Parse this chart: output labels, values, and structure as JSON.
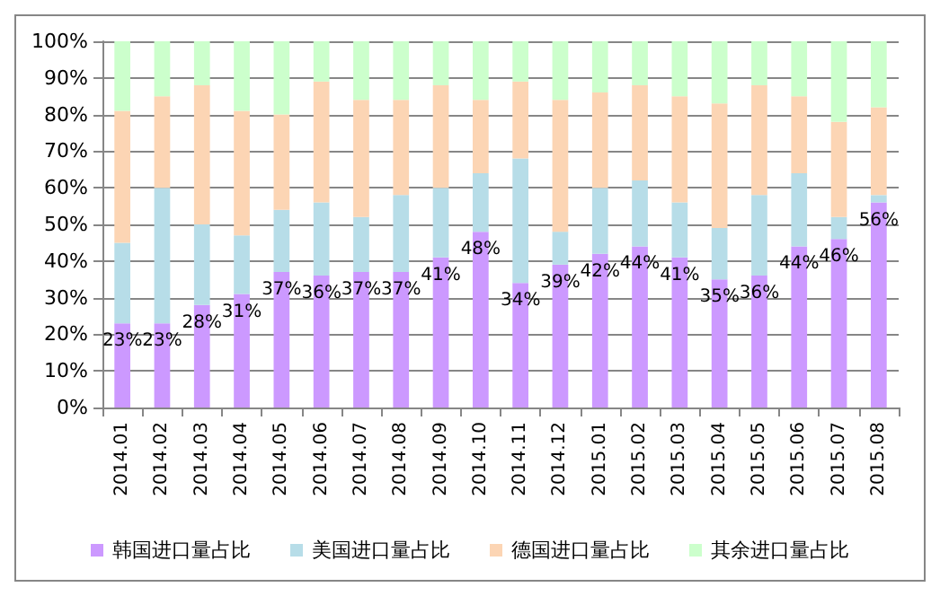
{
  "chart_data": {
    "type": "bar",
    "stacked": true,
    "categories": [
      "2014.01",
      "2014.02",
      "2014.03",
      "2014.04",
      "2014.05",
      "2014.06",
      "2014.07",
      "2014.08",
      "2014.09",
      "2014.10",
      "2014.11",
      "2014.12",
      "2015.01",
      "2015.02",
      "2015.03",
      "2015.04",
      "2015.05",
      "2015.06",
      "2015.07",
      "2015.08"
    ],
    "series": [
      {
        "name": "韩国进口量占比",
        "color": "#cc99ff",
        "values": [
          23,
          23,
          28,
          31,
          37,
          36,
          37,
          37,
          41,
          48,
          34,
          39,
          42,
          44,
          41,
          35,
          36,
          44,
          46,
          56
        ],
        "value_labels": [
          "23%",
          "23%",
          "28%",
          "31%",
          "37%",
          "36%",
          "37%",
          "37%",
          "41%",
          "48%",
          "34%",
          "39%",
          "42%",
          "44%",
          "41%",
          "35%",
          "36%",
          "44%",
          "46%",
          "56%"
        ]
      },
      {
        "name": "美国进口量占比",
        "color": "#b7dde8",
        "values": [
          22,
          37,
          22,
          16,
          17,
          20,
          15,
          21,
          19,
          16,
          34,
          9,
          18,
          18,
          15,
          14,
          22,
          20,
          6,
          2
        ]
      },
      {
        "name": "德国进口量占比",
        "color": "#fcd5b4",
        "values": [
          36,
          25,
          38,
          34,
          26,
          33,
          32,
          26,
          28,
          20,
          21,
          36,
          26,
          26,
          29,
          34,
          30,
          21,
          26,
          24
        ]
      },
      {
        "name": "其余进口量占比",
        "color": "#ccffcc",
        "values": [
          19,
          15,
          12,
          19,
          20,
          11,
          16,
          16,
          12,
          16,
          11,
          16,
          14,
          12,
          15,
          17,
          12,
          15,
          22,
          18
        ]
      }
    ],
    "ylim": [
      0,
      100
    ],
    "yticks": [
      {
        "value": 0,
        "label": "0%"
      },
      {
        "value": 10,
        "label": "10%"
      },
      {
        "value": 20,
        "label": "20%"
      },
      {
        "value": 30,
        "label": "30%"
      },
      {
        "value": 40,
        "label": "40%"
      },
      {
        "value": 50,
        "label": "50%"
      },
      {
        "value": 60,
        "label": "60%"
      },
      {
        "value": 70,
        "label": "70%"
      },
      {
        "value": 80,
        "label": "80%"
      },
      {
        "value": 90,
        "label": "90%"
      },
      {
        "value": 100,
        "label": "100%"
      }
    ],
    "grid": "y",
    "legend": "bottom"
  }
}
